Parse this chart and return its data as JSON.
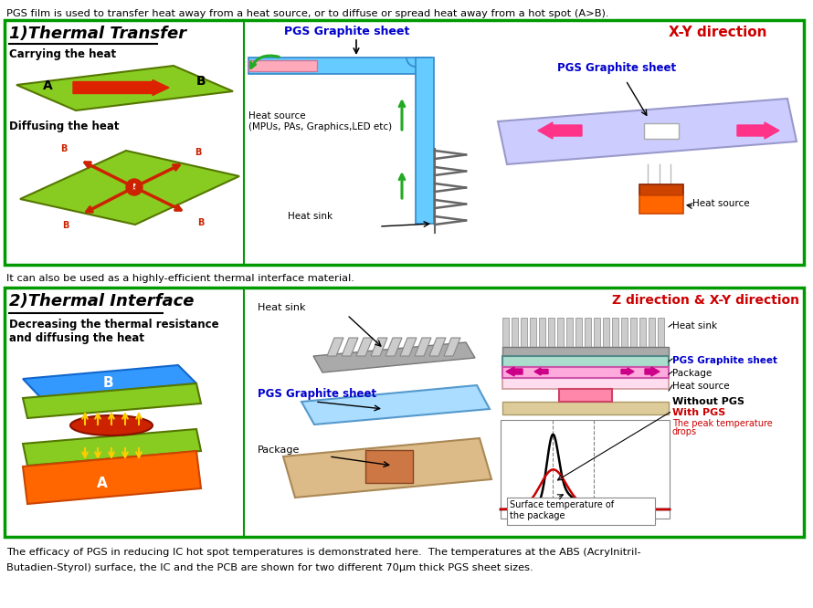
{
  "bg_color": "#ffffff",
  "border_color": "#009900",
  "top_text": "PGS film is used to transfer heat away from a heat source, or to diffuse or spread heat away from a hot spot (A>B).",
  "mid_text": "It can also be used as a highly-efficient thermal interface material.",
  "bottom_text1": "The efficacy of PGS in reducing IC hot spot temperatures is demonstrated here.  The temperatures at the ABS (Acrylnitril-",
  "bottom_text2": "Butadien-Styrol) surface, the IC and the PCB are shown for two different 70μm thick PGS sheet sizes.",
  "section1_title": "1)Thermal Transfer",
  "section2_title": "2)Thermal Interface",
  "green_fill": "#88cc22",
  "light_blue": "#66ccff",
  "pink_color": "#ffaacc",
  "orange_color": "#ff6600",
  "light_purple": "#ccccff",
  "red_arrow": "#dd2200",
  "pink_arrow": "#ee3388",
  "blue_text": "#0000cc",
  "red_text": "#cc0000",
  "pgs_blue": "#99ccff",
  "heat_sink_gray": "#bbbbbb",
  "wood_color": "#ddbb88",
  "magenta_color": "#ee44cc"
}
